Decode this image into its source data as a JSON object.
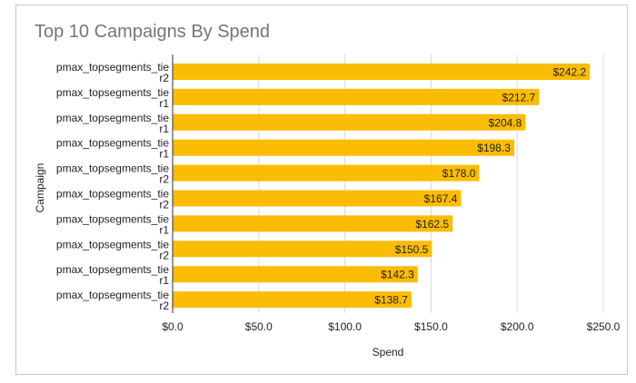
{
  "chart_data": {
    "type": "bar",
    "orientation": "horizontal",
    "title": "Top 10 Campaigns By Spend",
    "xlabel": "Spend",
    "ylabel": "Campaign",
    "categories": [
      [
        "pmax_topsegments_tie",
        "r2"
      ],
      [
        "pmax_topsegments_tie",
        "r1"
      ],
      [
        "pmax_topsegments_tie",
        "r1"
      ],
      [
        "pmax_topsegments_tie",
        "r1"
      ],
      [
        "pmax_topsegments_tie",
        "r2"
      ],
      [
        "pmax_topsegments_tie",
        "r2"
      ],
      [
        "pmax_topsegments_tie",
        "r1"
      ],
      [
        "pmax_topsegments_tie",
        "r2"
      ],
      [
        "pmax_topsegments_tie",
        "r1"
      ],
      [
        "pmax_topsegments_tie",
        "r2"
      ]
    ],
    "values": [
      242.2,
      212.7,
      204.8,
      198.3,
      178.0,
      167.4,
      162.5,
      150.5,
      142.3,
      138.7
    ],
    "data_labels": [
      "$242.2",
      "$212.7",
      "$204.8",
      "$198.3",
      "$178.0",
      "$167.4",
      "$162.5",
      "$150.5",
      "$142.3",
      "$138.7"
    ],
    "xlim": [
      0,
      250
    ],
    "xticks": [
      0,
      50,
      100,
      150,
      200,
      250
    ],
    "xtick_labels": [
      "$0.0",
      "$50.0",
      "$100.0",
      "$150.0",
      "$200.0",
      "$250.0"
    ],
    "grid": true,
    "legend": "none",
    "colors": {
      "bar": "#fbbc04",
      "grid": "#d9d9d9",
      "title": "#757575"
    }
  }
}
